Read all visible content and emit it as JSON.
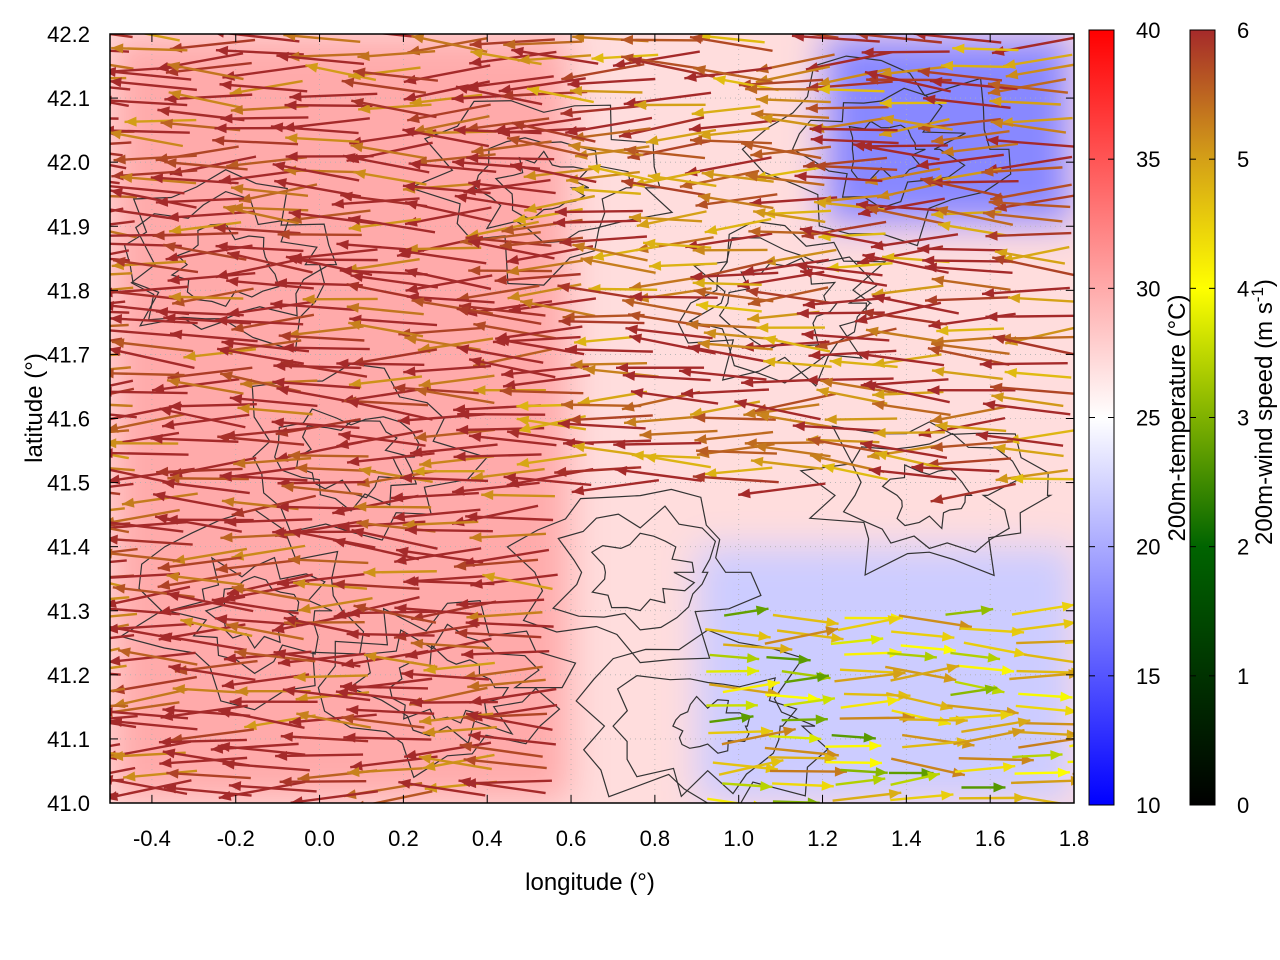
{
  "chart_data": {
    "type": "heatmap",
    "xlabel": "longitude (°)",
    "ylabel": "latitude (°)",
    "xlim": [
      -0.5,
      1.8
    ],
    "ylim": [
      41.0,
      42.2
    ],
    "x_ticks": [
      "-0.4",
      "-0.2",
      "0.0",
      "0.2",
      "0.4",
      "0.6",
      "0.8",
      "1.0",
      "1.2",
      "1.4",
      "1.6",
      "1.8"
    ],
    "y_ticks": [
      "41.0",
      "41.1",
      "41.2",
      "41.3",
      "41.4",
      "41.5",
      "41.6",
      "41.7",
      "41.8",
      "41.9",
      "42.0",
      "42.1",
      "42.2"
    ],
    "grid": true,
    "colorbars": [
      {
        "label": "200m-temperature (°C)",
        "range": [
          10,
          40
        ],
        "ticks": [
          "10",
          "15",
          "20",
          "25",
          "30",
          "35",
          "40"
        ],
        "colors": [
          "#0000ff",
          "#ffffff",
          "#ff0000"
        ]
      },
      {
        "label_main": "200m-wind speed (m s",
        "label_sup": "-1",
        "label_end": ")",
        "range": [
          0,
          6
        ],
        "ticks": [
          "0",
          "1",
          "2",
          "3",
          "4",
          "5",
          "6"
        ],
        "colors": [
          "#000000",
          "#006400",
          "#ffff00",
          "#d4a017",
          "#a52a2a"
        ]
      }
    ],
    "temperature_regions": [
      {
        "region": "west",
        "lon_range": [
          -0.5,
          0.6
        ],
        "lat_range": [
          41.0,
          42.2
        ],
        "approx_temp_c": 30
      },
      {
        "region": "central",
        "lon_range": [
          0.6,
          1.0
        ],
        "lat_range": [
          41.3,
          42.2
        ],
        "approx_temp_c": 27
      },
      {
        "region": "southeast",
        "lon_range": [
          0.9,
          1.8
        ],
        "lat_range": [
          41.0,
          41.4
        ],
        "approx_temp_c": 22
      },
      {
        "region": "northeast",
        "lon_range": [
          1.2,
          1.8
        ],
        "lat_range": [
          41.9,
          42.2
        ],
        "approx_temp_c": 18
      }
    ],
    "wind_field": [
      {
        "lon_range": [
          -0.5,
          0.6
        ],
        "lat_range": [
          41.0,
          42.2
        ],
        "direction": "toward west",
        "approx_speed": 6
      },
      {
        "lon_range": [
          0.6,
          1.8
        ],
        "lat_range": [
          41.5,
          42.2
        ],
        "direction": "toward west",
        "approx_speed": 5.5
      },
      {
        "lon_range": [
          0.9,
          1.8
        ],
        "lat_range": [
          41.0,
          41.3
        ],
        "direction": "toward east",
        "approx_speed": 3.5
      }
    ]
  }
}
